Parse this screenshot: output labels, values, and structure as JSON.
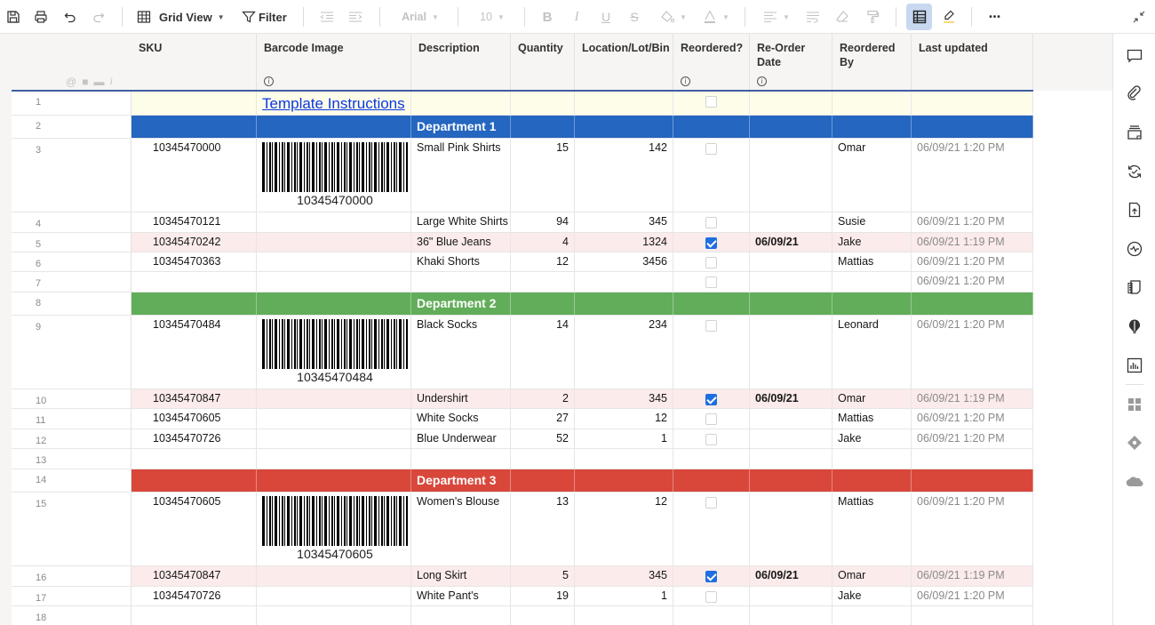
{
  "toolbar": {
    "save_icon": "save-icon",
    "print_icon": "print-icon",
    "undo_icon": "undo-icon",
    "redo_icon": "redo-icon",
    "view_label": "Grid View",
    "filter_label": "Filter",
    "font": "Arial",
    "font_size": "10",
    "bold_glyph": "B",
    "italic_glyph": "I",
    "underline_glyph": "U",
    "strike_glyph": "S",
    "more_glyph": "•••"
  },
  "columns": [
    {
      "label": "SKU",
      "info": false
    },
    {
      "label": "Barcode Image",
      "info": true
    },
    {
      "label": "Description",
      "info": false
    },
    {
      "label": "Quantity",
      "info": false
    },
    {
      "label": "Location/Lot/Bin",
      "info": false
    },
    {
      "label": "Reordered?",
      "info": true
    },
    {
      "label": "Re-Order Date",
      "info": true
    },
    {
      "label": "Reordered By",
      "info": false
    },
    {
      "label": "Last updated",
      "info": false
    }
  ],
  "rows": [
    {
      "n": "1",
      "type": "instructions",
      "link": "Template Instructions",
      "reordered": false
    },
    {
      "n": "2",
      "type": "dept",
      "label": "Department 1",
      "color": "#2466c0"
    },
    {
      "n": "3",
      "sku": "10345470000",
      "barcode": "10345470000",
      "desc": "Small Pink Shirts",
      "qty": "15",
      "loc": "142",
      "reordered": false,
      "date": "",
      "by": "Omar",
      "updated": "06/09/21 1:20 PM"
    },
    {
      "n": "4",
      "sku": "10345470121",
      "desc": "Large White Shirts",
      "qty": "94",
      "loc": "345",
      "reordered": false,
      "date": "",
      "by": "Susie",
      "updated": "06/09/21 1:20 PM"
    },
    {
      "n": "5",
      "sku": "10345470242",
      "desc": "36\" Blue Jeans",
      "qty": "4",
      "loc": "1324",
      "reordered": true,
      "date": "06/09/21",
      "by": "Jake",
      "updated": "06/09/21 1:19 PM"
    },
    {
      "n": "6",
      "sku": "10345470363",
      "desc": "Khaki Shorts",
      "qty": "12",
      "loc": "3456",
      "reordered": false,
      "date": "",
      "by": "Mattias",
      "updated": "06/09/21 1:20 PM"
    },
    {
      "n": "7",
      "sku": "",
      "desc": "",
      "qty": "",
      "loc": "",
      "reordered": false,
      "date": "",
      "by": "",
      "updated": "06/09/21 1:20 PM"
    },
    {
      "n": "8",
      "type": "dept",
      "label": "Department 2",
      "color": "#62ad5a"
    },
    {
      "n": "9",
      "sku": "10345470484",
      "barcode": "10345470484",
      "desc": "Black Socks",
      "qty": "14",
      "loc": "234",
      "reordered": false,
      "date": "",
      "by": "Leonard",
      "updated": "06/09/21 1:20 PM"
    },
    {
      "n": "10",
      "sku": "10345470847",
      "desc": "Undershirt",
      "qty": "2",
      "loc": "345",
      "reordered": true,
      "date": "06/09/21",
      "by": "Omar",
      "updated": "06/09/21 1:19 PM"
    },
    {
      "n": "11",
      "sku": "10345470605",
      "desc": "White Socks",
      "qty": "27",
      "loc": "12",
      "reordered": false,
      "date": "",
      "by": "Mattias",
      "updated": "06/09/21 1:20 PM"
    },
    {
      "n": "12",
      "sku": "10345470726",
      "desc": "Blue Underwear",
      "qty": "52",
      "loc": "1",
      "reordered": false,
      "date": "",
      "by": "Jake",
      "updated": "06/09/21 1:20 PM"
    },
    {
      "n": "13",
      "type": "empty"
    },
    {
      "n": "14",
      "type": "dept",
      "label": "Department 3",
      "color": "#d9473b"
    },
    {
      "n": "15",
      "sku": "10345470605",
      "barcode": "10345470605",
      "desc": "Women's Blouse",
      "qty": "13",
      "loc": "12",
      "reordered": false,
      "date": "",
      "by": "Mattias",
      "updated": "06/09/21 1:20 PM"
    },
    {
      "n": "16",
      "sku": "10345470847",
      "desc": "Long Skirt",
      "qty": "5",
      "loc": "345",
      "reordered": true,
      "date": "06/09/21",
      "by": "Omar",
      "updated": "06/09/21 1:19 PM"
    },
    {
      "n": "17",
      "sku": "10345470726",
      "desc": "White Pant's",
      "qty": "19",
      "loc": "1",
      "reordered": false,
      "date": "",
      "by": "Jake",
      "updated": "06/09/21 1:20 PM"
    },
    {
      "n": "18",
      "type": "empty"
    }
  ],
  "right_panel": [
    "comment-icon",
    "attachment-icon",
    "proofs-icon",
    "update-requests-icon",
    "publish-icon",
    "activity-log-icon",
    "summary-icon",
    "ideas-icon",
    "chart-icon",
    "apps-icon",
    "diamond-connector-icon",
    "cloud-connector-icon"
  ],
  "colors": {
    "dept1": "#2466c0",
    "dept2": "#62ad5a",
    "dept3": "#d9473b",
    "reordered_row": "#fcebeb",
    "instructions_row": "#fefde9",
    "checkbox_checked": "#1f6fe0"
  }
}
